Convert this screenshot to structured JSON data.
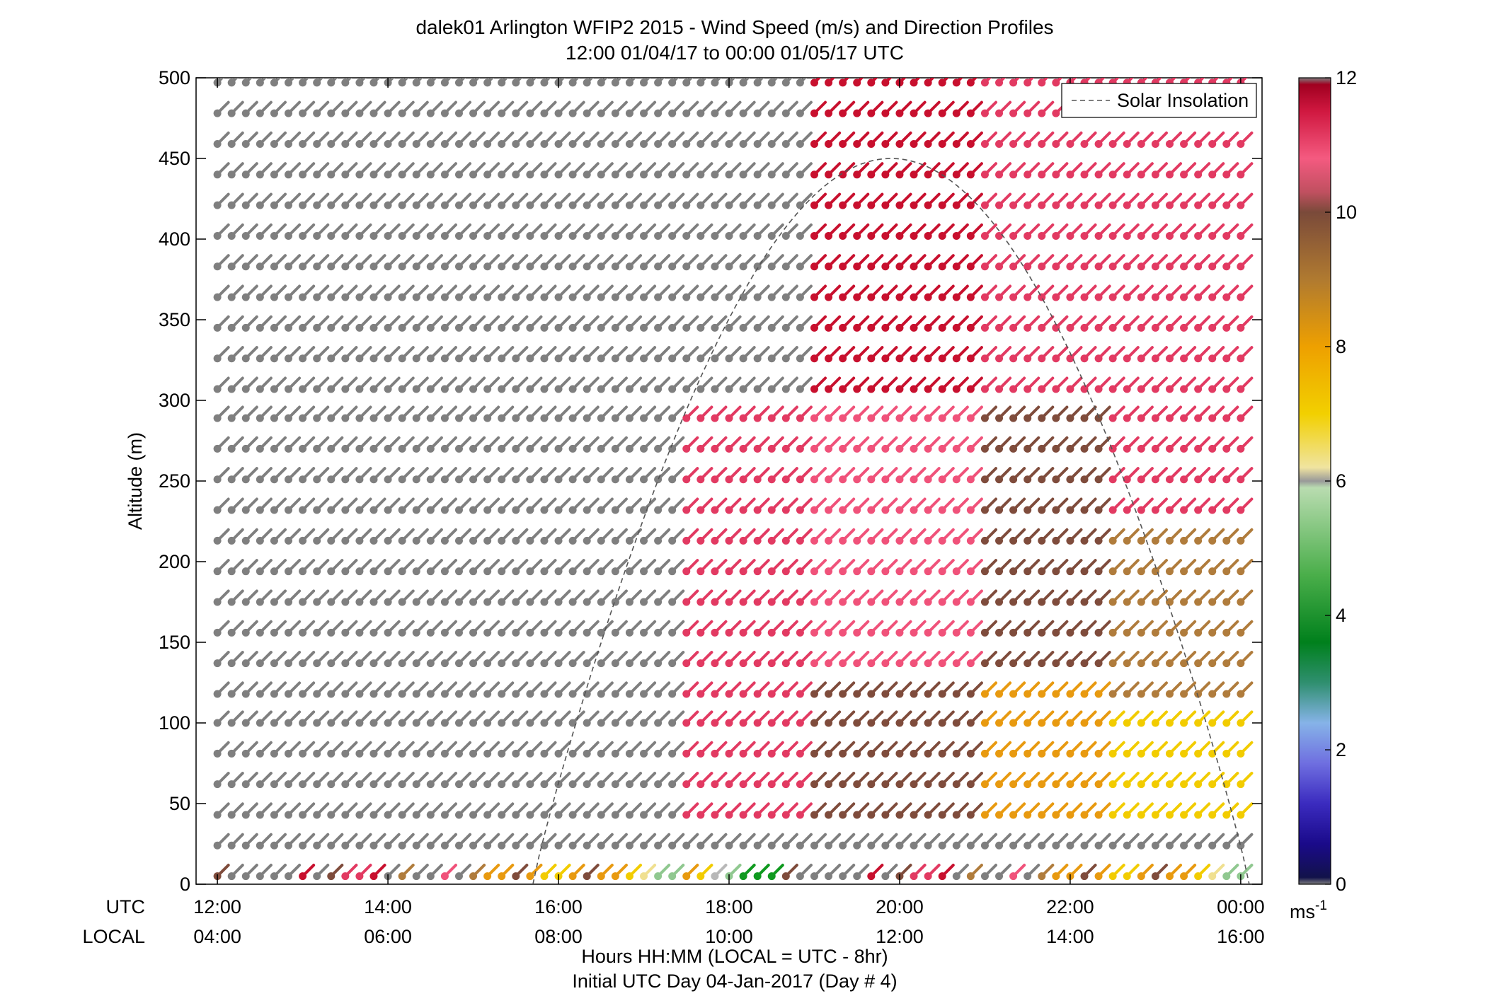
{
  "chart_data": {
    "type": "wind-barb-profile",
    "title_line1": "dalek01 Arlington WFIP2 2015 - Wind Speed (m/s) and Direction Profiles",
    "title_line2": "12:00 01/04/17 to 00:00 01/05/17  UTC",
    "ylabel": "Altitude (m)",
    "ylim": [
      0,
      500
    ],
    "yticks": [
      0,
      50,
      100,
      150,
      200,
      250,
      300,
      350,
      400,
      450,
      500
    ],
    "xlim_hours": [
      11.75,
      24.25
    ],
    "xaxis_row1_label": "UTC",
    "xaxis_row2_label": "LOCAL",
    "xticks_utc": [
      "12:00",
      "14:00",
      "16:00",
      "18:00",
      "20:00",
      "22:00",
      "00:00"
    ],
    "xticks_local": [
      "04:00",
      "06:00",
      "08:00",
      "10:00",
      "12:00",
      "14:00",
      "16:00"
    ],
    "xlabel_line1": "Hours HH:MM  (LOCAL = UTC - 8hr)",
    "xlabel_line2": "Initial UTC Day 04-Jan-2017 (Day # 4)",
    "legend": {
      "label": "Solar Insolation",
      "placement": "top-right",
      "line_style": "dashed",
      "color": "#555555"
    },
    "colorbar": {
      "ticks": [
        0,
        2,
        4,
        6,
        8,
        10,
        12
      ],
      "unit_label": "ms",
      "unit_exponent": "-1",
      "stops": [
        {
          "v": 0.0,
          "c": "#7f7f7f"
        },
        {
          "v": 0.1,
          "c": "#12124a"
        },
        {
          "v": 0.6,
          "c": "#1a0a8a"
        },
        {
          "v": 1.2,
          "c": "#3b2bbf"
        },
        {
          "v": 1.8,
          "c": "#6f6fe0"
        },
        {
          "v": 2.4,
          "c": "#86b3e8"
        },
        {
          "v": 3.0,
          "c": "#2f8f6f"
        },
        {
          "v": 3.6,
          "c": "#00801c"
        },
        {
          "v": 4.6,
          "c": "#4aae4a"
        },
        {
          "v": 5.9,
          "c": "#b9dcb0"
        },
        {
          "v": 6.0,
          "c": "#999999"
        },
        {
          "v": 6.2,
          "c": "#f0e4a0"
        },
        {
          "v": 7.0,
          "c": "#f2d000"
        },
        {
          "v": 8.0,
          "c": "#eea000"
        },
        {
          "v": 9.0,
          "c": "#b07a30"
        },
        {
          "v": 10.0,
          "c": "#7a4a3a"
        },
        {
          "v": 10.3,
          "c": "#c05060"
        },
        {
          "v": 10.8,
          "c": "#f45a80"
        },
        {
          "v": 11.5,
          "c": "#d01840"
        },
        {
          "v": 11.9,
          "c": "#a00020"
        },
        {
          "v": 12.0,
          "c": "#7f7f7f"
        }
      ]
    },
    "palette": {
      "gray": "#7f7f7f",
      "crimson": "#c8102e",
      "pink": "#e23a62",
      "rose": "#f0527a",
      "brown": "#7f4c3c",
      "tan": "#b07c3c",
      "orange": "#e89a10",
      "yellow": "#f2cc00",
      "cream": "#f0e090",
      "lightgreen": "#90c890",
      "green": "#109a20",
      "lightgray": "#b8b8b8"
    },
    "time_start_hour": 12.0,
    "time_step_hour": 0.1667,
    "heights_m": [
      5,
      24,
      43,
      62,
      81,
      100,
      118,
      137,
      156,
      175,
      194,
      213,
      232,
      251,
      270,
      289,
      307,
      326,
      345
    ],
    "speed_rules": [
      {
        "t0": 12.0,
        "t1": 17.4,
        "h0": 30,
        "h1": 500,
        "color": "gray"
      },
      {
        "t0": 17.4,
        "t1": 18.9,
        "h0": 30,
        "h1": 300,
        "color": "pink"
      },
      {
        "t0": 17.4,
        "t1": 18.9,
        "h0": 300,
        "h1": 500,
        "color": "gray"
      },
      {
        "t0": 18.9,
        "t1": 21.0,
        "h0": 30,
        "h1": 130,
        "color": "brown"
      },
      {
        "t0": 18.9,
        "t1": 21.0,
        "h0": 130,
        "h1": 300,
        "color": "rose"
      },
      {
        "t0": 18.9,
        "t1": 21.0,
        "h0": 300,
        "h1": 500,
        "color": "crimson"
      },
      {
        "t0": 21.0,
        "t1": 22.5,
        "h0": 30,
        "h1": 120,
        "color": "orange"
      },
      {
        "t0": 21.0,
        "t1": 22.5,
        "h0": 120,
        "h1": 300,
        "color": "brown"
      },
      {
        "t0": 21.0,
        "t1": 22.5,
        "h0": 300,
        "h1": 500,
        "color": "pink"
      },
      {
        "t0": 22.5,
        "t1": 24.1,
        "h0": 30,
        "h1": 110,
        "color": "yellow"
      },
      {
        "t0": 22.5,
        "t1": 24.1,
        "h0": 110,
        "h1": 230,
        "color": "tan"
      },
      {
        "t0": 22.5,
        "t1": 24.1,
        "h0": 230,
        "h1": 500,
        "color": "pink"
      }
    ],
    "barb_heights_m": [
      5,
      24,
      43,
      62,
      81,
      100,
      118,
      137,
      156,
      175,
      194,
      213,
      232,
      251,
      270,
      289,
      307,
      326,
      345,
      364,
      383,
      402,
      421,
      440,
      459,
      478,
      497
    ],
    "barb_times_hour": [
      12.0,
      12.1667,
      12.3333,
      12.5,
      12.6667,
      12.8333,
      13.0,
      13.1667,
      13.3333,
      13.5,
      13.6667,
      13.8333,
      14.0,
      14.1667,
      14.3333,
      14.5,
      14.6667,
      14.8333,
      15.0,
      15.1667,
      15.3333,
      15.5,
      15.6667,
      15.8333,
      16.0,
      16.1667,
      16.3333,
      16.5,
      16.6667,
      16.8333,
      17.0,
      17.1667,
      17.3333,
      17.5,
      17.6667,
      17.8333,
      18.0,
      18.1667,
      18.3333,
      18.5,
      18.6667,
      18.8333,
      19.0,
      19.1667,
      19.3333,
      19.5,
      19.6667,
      19.8333,
      20.0,
      20.1667,
      20.3333,
      20.5,
      20.6667,
      20.8333,
      21.0,
      21.1667,
      21.3333,
      21.5,
      21.6667,
      21.8333,
      22.0,
      22.1667,
      22.3333,
      22.5,
      22.6667,
      22.8333,
      23.0,
      23.1667,
      23.3333,
      23.5,
      23.6667,
      23.8333,
      24.0
    ],
    "insolation_curve": {
      "start_hour": 15.7,
      "peak_hour": 19.95,
      "end_hour": 24.1,
      "peak_altitude_m": 450
    },
    "wind_direction_deg": 225
  }
}
